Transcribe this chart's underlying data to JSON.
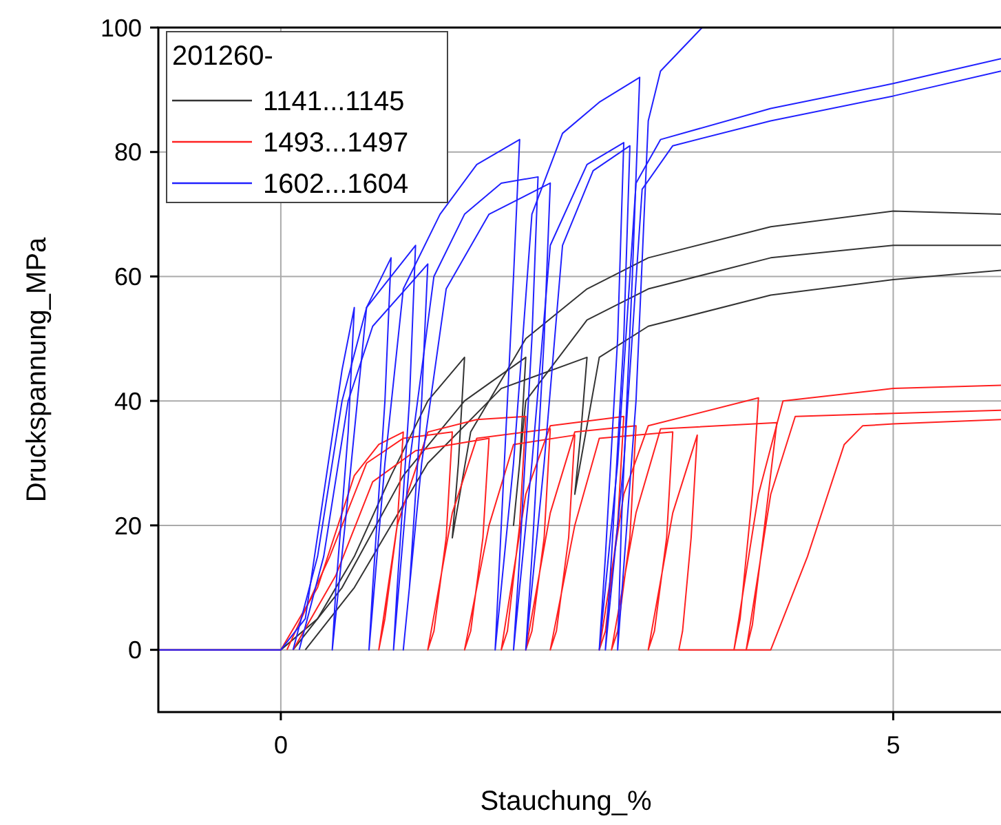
{
  "chart_data": {
    "type": "line",
    "xlabel": "Stauchung_%",
    "ylabel": "Druckspannung_MPa",
    "legend_title": "201260-",
    "legend": "top left",
    "grid": true,
    "xlim": [
      -1,
      5.88
    ],
    "xticks": [
      0,
      5
    ],
    "ylim": [
      -10,
      100
    ],
    "yticks": [
      0,
      20,
      40,
      60,
      80,
      100
    ],
    "series": [
      {
        "name": "1141...1145",
        "color": "#333333",
        "x": [
          -1,
          0,
          0.3,
          0.6,
          0.9,
          1.2,
          1.5,
          1.45,
          1.4,
          1.55,
          2,
          2.5,
          3,
          4,
          5,
          5.88
        ],
        "values": [
          0,
          0,
          5,
          15,
          28,
          40,
          47,
          30,
          18,
          35,
          50,
          58,
          63,
          68,
          70.5,
          70
        ]
      },
      {
        "color": "#333333",
        "x": [
          0.1,
          0.5,
          1,
          1.5,
          2.0,
          1.95,
          1.9,
          2.0,
          2.5,
          3,
          4,
          5,
          5.88
        ],
        "values": [
          0,
          10,
          28,
          40,
          47,
          30,
          20,
          40,
          53,
          58,
          63,
          65,
          65
        ]
      },
      {
        "color": "#333333",
        "x": [
          0.2,
          0.6,
          1.2,
          1.8,
          2.5,
          2.45,
          2.4,
          2.6,
          3,
          4,
          5,
          5.88
        ],
        "values": [
          0,
          10,
          30,
          42,
          47,
          35,
          25,
          47,
          52,
          57,
          59.5,
          61
        ]
      },
      {
        "name": "1493...1497",
        "color": "#ff2020",
        "x": [
          -1,
          0,
          0.3,
          0.6,
          0.8,
          1.0,
          0.95,
          0.85,
          0.8,
          0.95,
          1.2,
          1.6,
          2.0,
          1.95,
          1.85,
          1.8,
          2.0,
          2.2,
          2.8,
          2.75,
          2.65,
          2.6,
          2.8,
          3.0,
          3.9,
          3.85,
          3.75,
          3.7,
          3.9,
          4.1,
          5,
          5.88
        ],
        "values": [
          0,
          0,
          10,
          28,
          33,
          35,
          20,
          5,
          0,
          20,
          35,
          37,
          37.5,
          20,
          3,
          0,
          25,
          36,
          37.5,
          20,
          3,
          0,
          25,
          36,
          40.5,
          25,
          5,
          0,
          25,
          40,
          42,
          42.5
        ]
      },
      {
        "color": "#ff2020",
        "x": [
          0.05,
          0.4,
          0.7,
          1.0,
          1.4,
          1.35,
          1.25,
          1.2,
          1.4,
          1.6,
          2.2,
          2.15,
          2.05,
          2.0,
          2.2,
          2.4,
          2.9,
          2.85,
          2.75,
          2.7,
          2.9,
          3.1,
          4.05,
          3.95,
          3.85,
          3.8,
          4.0,
          4.2,
          5,
          5.88
        ],
        "values": [
          0,
          15,
          30,
          34,
          35,
          18,
          3,
          0,
          22,
          34,
          35.5,
          18,
          3,
          0,
          22,
          35,
          36,
          18,
          3,
          0,
          22,
          35.5,
          36.5,
          20,
          4,
          0,
          25,
          37.5,
          38,
          38.5
        ]
      },
      {
        "color": "#ff2020",
        "x": [
          0.1,
          0.45,
          0.75,
          1.1,
          1.7,
          1.65,
          1.55,
          1.5,
          1.7,
          1.9,
          2.4,
          2.35,
          2.25,
          2.2,
          2.4,
          2.6,
          3.2,
          3.15,
          3.05,
          3.0,
          3.2,
          3.4,
          3.35,
          3.28,
          3.25,
          4.0,
          4.3,
          4.6,
          4.75,
          5,
          5.88
        ],
        "values": [
          0,
          12,
          27,
          32,
          34,
          18,
          3,
          0,
          20,
          33,
          34.5,
          18,
          3,
          0,
          20,
          34,
          35,
          18,
          3,
          0,
          22,
          34.5,
          18,
          3,
          0,
          0,
          15,
          33,
          36,
          36.3,
          37
        ]
      },
      {
        "name": "1602...1604",
        "color": "#2020ff",
        "x": [
          -1,
          0,
          0.2,
          0.35,
          0.5,
          0.6,
          0.55,
          0.45,
          0.42,
          0.55,
          0.7,
          0.9,
          0.85,
          0.75,
          0.72,
          0.85,
          1.0,
          1.3,
          1.6,
          1.95,
          1.9,
          1.8,
          1.75,
          1.9,
          2.05,
          2.3,
          2.6,
          2.93,
          2.87,
          2.78,
          2.75,
          2.9,
          3.0,
          3.1,
          3.44
        ],
        "values": [
          0,
          0,
          5,
          25,
          45,
          55,
          35,
          10,
          0,
          25,
          55,
          63,
          40,
          10,
          0,
          30,
          58,
          70,
          78,
          82,
          60,
          20,
          0,
          30,
          70,
          83,
          88,
          92,
          60,
          20,
          0,
          40,
          85,
          93,
          100
        ]
      },
      {
        "color": "#2020ff",
        "x": [
          0.1,
          0.3,
          0.5,
          0.7,
          0.9,
          1.1,
          1.05,
          0.95,
          0.92,
          1.05,
          1.25,
          1.5,
          1.8,
          2.1,
          2.05,
          1.95,
          1.9,
          2.05,
          2.2,
          2.5,
          2.8,
          2.75,
          2.65,
          2.6,
          2.75,
          2.9,
          3.1,
          4,
          5,
          5.88
        ],
        "values": [
          0,
          15,
          40,
          55,
          60,
          65,
          40,
          10,
          0,
          30,
          60,
          70,
          75,
          76,
          50,
          15,
          0,
          30,
          65,
          78,
          81.5,
          50,
          15,
          0,
          30,
          75,
          82,
          87,
          91,
          95
        ]
      },
      {
        "color": "#2020ff",
        "x": [
          0.15,
          0.35,
          0.55,
          0.75,
          1.2,
          1.15,
          1.05,
          1.0,
          1.15,
          1.35,
          1.7,
          2.2,
          2.15,
          2.05,
          2.0,
          2.15,
          2.3,
          2.55,
          2.85,
          2.8,
          2.7,
          2.65,
          2.8,
          2.95,
          3.2,
          4,
          5,
          5.88
        ],
        "values": [
          0,
          15,
          40,
          52,
          62,
          40,
          10,
          0,
          30,
          58,
          70,
          75,
          50,
          15,
          0,
          30,
          65,
          77,
          81,
          50,
          15,
          0,
          30,
          74,
          81,
          85,
          89,
          93
        ]
      }
    ]
  }
}
